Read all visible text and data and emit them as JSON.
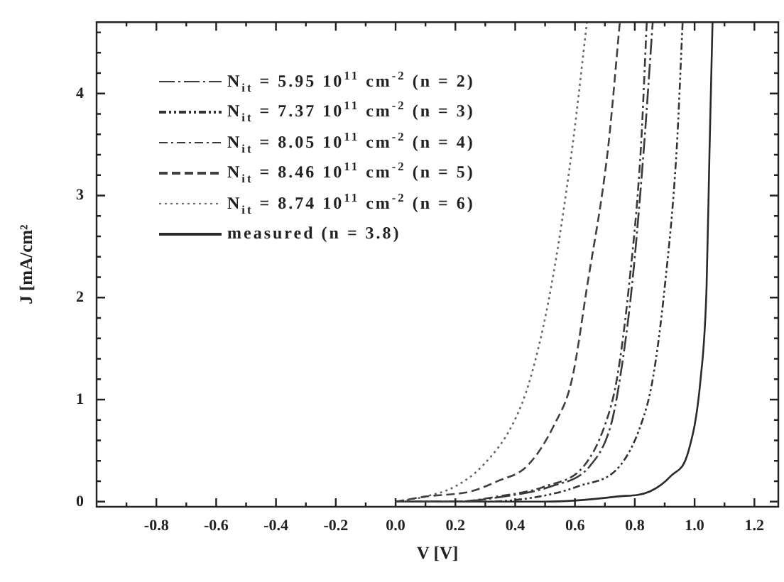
{
  "chart_data": {
    "type": "line",
    "xlabel": "V [V]",
    "ylabel": "J [mA/cm²",
    "xlim": [
      -1.0,
      1.28
    ],
    "ylim": [
      -0.05,
      4.7
    ],
    "xticks": [
      {
        "value": -0.9,
        "label": null
      },
      -0.8,
      {
        "value": -0.7,
        "label": null
      },
      -0.6,
      {
        "value": -0.5,
        "label": null
      },
      -0.4,
      {
        "value": -0.3,
        "label": null
      },
      -0.2,
      {
        "value": -0.1,
        "label": null
      },
      {
        "value": 0,
        "label": "0.0"
      },
      {
        "value": 0.1,
        "label": null
      },
      0.2,
      {
        "value": 0.3,
        "label": null
      },
      0.4,
      {
        "value": 0.5,
        "label": null
      },
      0.6,
      {
        "value": 0.7,
        "label": null
      },
      0.8,
      {
        "value": 0.9,
        "label": null
      },
      {
        "value": 1,
        "label": "1.0"
      },
      {
        "value": 1.1,
        "label": null
      },
      1.2
    ],
    "yticks": [
      0,
      {
        "value": 0.2,
        "label": null
      },
      {
        "value": 0.4,
        "label": null
      },
      {
        "value": 0.6,
        "label": null
      },
      {
        "value": 0.8,
        "label": null
      },
      1,
      {
        "value": 1.2,
        "label": null
      },
      {
        "value": 1.4,
        "label": null
      },
      {
        "value": 1.6,
        "label": null
      },
      {
        "value": 1.8,
        "label": null
      },
      2,
      {
        "value": 2.2,
        "label": null
      },
      {
        "value": 2.4,
        "label": null
      },
      {
        "value": 2.6,
        "label": null
      },
      {
        "value": 2.8,
        "label": null
      },
      3,
      {
        "value": 3.2,
        "label": null
      },
      {
        "value": 3.4,
        "label": null
      },
      {
        "value": 3.6,
        "label": null
      },
      {
        "value": 3.8,
        "label": null
      },
      4,
      {
        "value": 4.2,
        "label": null
      },
      {
        "value": 4.4,
        "label": null
      },
      {
        "value": 4.6,
        "label": null
      }
    ],
    "grid": false,
    "legend": "top left",
    "series": [
      {
        "name": "N$_{it}$ = 5.95 10$^{11}$ cm$^{-2}$ (n = 2)",
        "color": "#3a3a3a",
        "line_style": "longdashdot",
        "x": [
          0,
          0.2,
          0.36,
          0.52,
          0.65,
          0.72,
          0.75,
          0.79,
          0.83,
          0.86
        ],
        "values": [
          0,
          0,
          0.05,
          0.15,
          0.35,
          0.75,
          1.2,
          2.1,
          3.45,
          4.7
        ]
      },
      {
        "name": "N$_{it}$ = 7.37 10$^{11}$ cm$^{-2}$ (n = 3)",
        "color": "#333333",
        "line_style": "dashdotdot",
        "x": [
          0,
          0.3,
          0.48,
          0.61,
          0.75,
          0.82,
          0.86,
          0.9,
          0.94,
          0.96
        ],
        "values": [
          0,
          0,
          0.05,
          0.15,
          0.35,
          0.75,
          1.2,
          2.1,
          3.45,
          4.7
        ]
      },
      {
        "name": "N$_{it}$ = 8.05 10$^{11}$ cm$^{-2}$ (n = 4)",
        "color": "#3a3a3a",
        "line_style": "dashdot",
        "x": [
          0,
          0.2,
          0.34,
          0.5,
          0.63,
          0.7,
          0.74,
          0.78,
          0.82,
          0.84
        ],
        "values": [
          0,
          0,
          0.05,
          0.15,
          0.35,
          0.75,
          1.2,
          2.1,
          3.45,
          4.7
        ]
      },
      {
        "name": "N$_{it}$ = 8.46 10$^{11}$ cm$^{-2}$ (n = 5)",
        "color": "#404040",
        "line_style": "dashed",
        "x": [
          0,
          0.1,
          0.25,
          0.34,
          0.44,
          0.53,
          0.59,
          0.64,
          0.71,
          0.75
        ],
        "values": [
          0,
          0.05,
          0.1,
          0.2,
          0.35,
          0.75,
          1.2,
          2.1,
          3.45,
          4.7
        ]
      },
      {
        "name": "N$_{it}$ = 8.74 10$^{11}$ cm$^{-2}$ (n = 6)",
        "color": "#666666",
        "line_style": "dotted",
        "x": [
          0,
          0.1,
          0.2,
          0.29,
          0.39,
          0.45,
          0.52,
          0.59,
          0.64
        ],
        "values": [
          0,
          0.05,
          0.15,
          0.35,
          0.75,
          1.2,
          2.1,
          3.45,
          4.7
        ]
      },
      {
        "name": "measured (n = 3.8)",
        "color": "#2a2a2a",
        "line_style": "solid",
        "x": [
          0,
          0.5,
          0.74,
          0.85,
          0.92,
          0.98,
          1.02,
          1.04,
          1.05,
          1.06
        ],
        "values": [
          0,
          0,
          0.05,
          0.1,
          0.25,
          0.5,
          1.2,
          2.1,
          3.45,
          4.7
        ]
      }
    ]
  }
}
